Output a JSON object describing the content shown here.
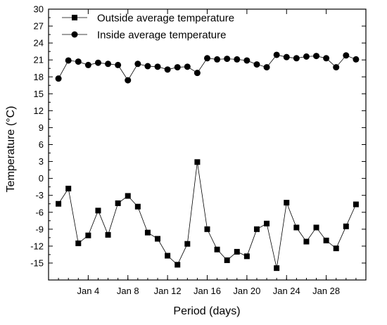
{
  "chart_data": {
    "type": "line",
    "xlabel": "Period (days)",
    "ylabel": "Temperature (°C)",
    "x_tick_labels": [
      "Jan 4",
      "Jan 8",
      "Jan 12",
      "Jan 16",
      "Jan 20",
      "Jan 24",
      "Jan 28"
    ],
    "x_ticks": [
      4,
      8,
      12,
      16,
      20,
      24,
      28
    ],
    "xlim": [
      0,
      32
    ],
    "ylim": [
      -18,
      30
    ],
    "y_ticks": [
      -15,
      -12,
      -9,
      -6,
      -3,
      0,
      3,
      6,
      9,
      12,
      15,
      18,
      21,
      24,
      27,
      30
    ],
    "grid": false,
    "legend_position": "top-left",
    "series": [
      {
        "name": "Outside average temperature",
        "marker": "square",
        "color": "#000000",
        "x": [
          1,
          2,
          3,
          4,
          5,
          6,
          7,
          8,
          9,
          10,
          11,
          12,
          13,
          14,
          15,
          16,
          17,
          18,
          19,
          20,
          21,
          22,
          23,
          24,
          25,
          26,
          27,
          28,
          29,
          30,
          31
        ],
        "y": [
          -4.5,
          -1.8,
          -11.5,
          -10.1,
          -5.7,
          -10.0,
          -4.4,
          -3.1,
          -5.0,
          -9.6,
          -10.7,
          -13.7,
          -15.3,
          -11.6,
          2.9,
          -9.0,
          -12.6,
          -14.5,
          -13.0,
          -13.8,
          -9.0,
          -8.0,
          -15.9,
          -4.3,
          -8.7,
          -11.2,
          -8.7,
          -11.0,
          -12.4,
          -8.5,
          -4.6
        ]
      },
      {
        "name": "Inside average temperature",
        "marker": "circle",
        "color": "#000000",
        "x": [
          1,
          2,
          3,
          4,
          5,
          6,
          7,
          8,
          9,
          10,
          11,
          12,
          13,
          14,
          15,
          16,
          17,
          18,
          19,
          20,
          21,
          22,
          23,
          24,
          25,
          26,
          27,
          28,
          29,
          30,
          31
        ],
        "y": [
          17.7,
          20.9,
          20.7,
          20.1,
          20.5,
          20.3,
          20.1,
          17.4,
          20.3,
          19.9,
          19.8,
          19.3,
          19.7,
          19.8,
          18.7,
          21.3,
          21.1,
          21.2,
          21.1,
          20.9,
          20.2,
          19.7,
          21.9,
          21.5,
          21.3,
          21.6,
          21.7,
          21.3,
          19.7,
          21.8,
          21.1
        ]
      }
    ]
  }
}
